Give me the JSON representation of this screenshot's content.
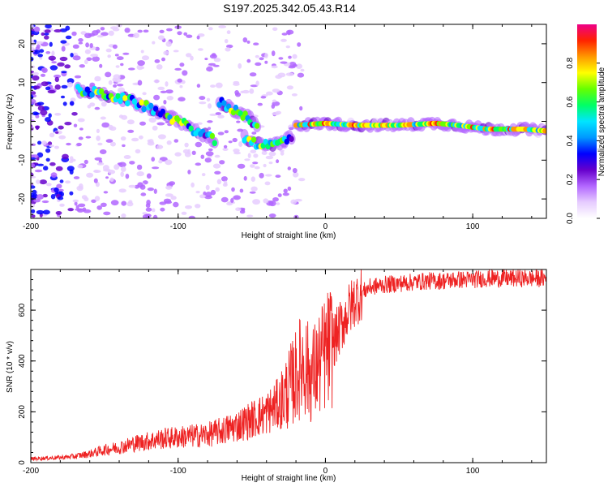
{
  "title": "S197.2025.342.05.43.R14",
  "colors": {
    "snr_line": "#ee2222",
    "axis": "#000000",
    "colorbar_stops": [
      "#ffffff",
      "#e6ccff",
      "#b266ff",
      "#6600cc",
      "#0000ff",
      "#0099ff",
      "#00e5ff",
      "#00ff66",
      "#66ff00",
      "#ffff00",
      "#ff9900",
      "#ff2200",
      "#ee0088"
    ]
  },
  "chart_data": [
    {
      "type": "heatmap",
      "name": "spectrogram",
      "xlabel": "Height of straight line (km)",
      "ylabel": "Frequency (Hz)",
      "xlim": [
        -200,
        150
      ],
      "ylim": [
        -25,
        25
      ],
      "xticks": [
        -200,
        -100,
        0,
        100
      ],
      "xtick_labels": [
        "-200",
        "-100",
        "0",
        "100"
      ],
      "yticks": [
        -20,
        -10,
        0,
        10,
        20
      ],
      "ytick_labels": [
        "-20",
        "-10",
        "0",
        "10",
        "20"
      ],
      "colorbar": {
        "label": "Normalized spectral amplitude",
        "range": [
          0,
          1
        ],
        "ticks": [
          0.0,
          0.2,
          0.4,
          0.6,
          0.8
        ],
        "tick_labels": [
          "0.0",
          "0.2",
          "0.4",
          "0.6",
          "0.8"
        ]
      },
      "features": [
        {
          "name": "descending echo track",
          "points": [
            [
              -168,
              8
            ],
            [
              -150,
              7
            ],
            [
              -130,
              5
            ],
            [
              -110,
              2
            ],
            [
              -95,
              -1
            ],
            [
              -85,
              -3
            ],
            [
              -75,
              -5
            ]
          ]
        },
        {
          "name": "second descending track",
          "points": [
            [
              -72,
              5
            ],
            [
              -62,
              3
            ],
            [
              -52,
              1
            ],
            [
              -45,
              -2
            ]
          ]
        },
        {
          "name": "lower branch",
          "points": [
            [
              -55,
              -4
            ],
            [
              -45,
              -6
            ],
            [
              -35,
              -6
            ],
            [
              -28,
              -5
            ],
            [
              -22,
              -4
            ]
          ]
        },
        {
          "name": "steady carrier line",
          "points": [
            [
              -20,
              -1
            ],
            [
              0,
              -0.5
            ],
            [
              20,
              -1
            ],
            [
              50,
              -1
            ],
            [
              75,
              -0.5
            ],
            [
              90,
              -1
            ],
            [
              110,
              -2
            ],
            [
              135,
              -2
            ],
            [
              150,
              -2.5
            ]
          ]
        }
      ]
    },
    {
      "type": "line",
      "name": "snr",
      "xlabel": "Height of straight line (km)",
      "ylabel": "SNR (10 * v/v)",
      "xlim": [
        -200,
        150
      ],
      "ylim": [
        0,
        760
      ],
      "xticks": [
        -200,
        -100,
        0,
        100
      ],
      "xtick_labels": [
        "-200",
        "-100",
        "0",
        "100"
      ],
      "yticks": [
        0,
        200,
        400,
        600
      ],
      "ytick_labels": [
        "0",
        "200",
        "400",
        "600"
      ],
      "series": [
        {
          "name": "SNR",
          "x": [
            -200,
            -190,
            -180,
            -170,
            -160,
            -150,
            -140,
            -130,
            -120,
            -110,
            -100,
            -90,
            -80,
            -70,
            -60,
            -50,
            -40,
            -30,
            -25,
            -20,
            -15,
            -10,
            -5,
            0,
            5,
            10,
            15,
            20,
            25,
            30,
            40,
            50,
            60,
            70,
            80,
            90,
            100,
            110,
            120,
            130,
            140,
            150
          ],
          "y": [
            15,
            18,
            20,
            25,
            35,
            50,
            60,
            75,
            85,
            95,
            100,
            105,
            110,
            125,
            145,
            170,
            195,
            240,
            290,
            340,
            400,
            340,
            380,
            430,
            470,
            530,
            590,
            640,
            670,
            690,
            700,
            705,
            710,
            715,
            715,
            720,
            720,
            725,
            725,
            725,
            725,
            725
          ]
        }
      ]
    }
  ]
}
